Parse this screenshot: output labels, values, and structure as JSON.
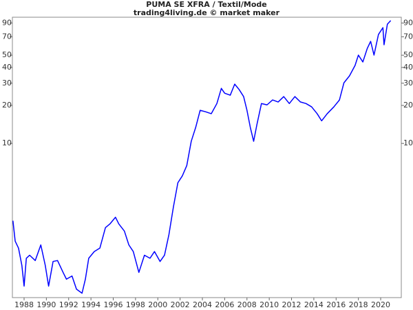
{
  "chart_data": {
    "type": "line",
    "title": "PUMA SE XFRA / Textil/Mode",
    "subtitle": "trading4living.de © market maker",
    "log_y": true,
    "xlim": [
      1986.95,
      2021.85
    ],
    "ylim": [
      0.6,
      100
    ],
    "xticks": [
      1988,
      1990,
      1992,
      1994,
      1996,
      1998,
      2000,
      2002,
      2004,
      2006,
      2008,
      2010,
      2012,
      2014,
      2016,
      2018,
      2020
    ],
    "yticks": [
      10,
      20,
      30,
      40,
      50,
      70,
      90
    ],
    "x": [
      1987.0,
      1987.2,
      1987.5,
      1987.8,
      1988.0,
      1988.2,
      1988.5,
      1989.0,
      1989.5,
      1989.9,
      1990.2,
      1990.6,
      1991.0,
      1991.5,
      1991.8,
      1992.3,
      1992.7,
      1993.2,
      1993.5,
      1993.8,
      1994.3,
      1994.8,
      1995.3,
      1995.7,
      1996.2,
      1996.5,
      1997.0,
      1997.4,
      1997.8,
      1998.3,
      1998.8,
      1999.3,
      1999.7,
      2000.2,
      2000.6,
      2001.0,
      2001.4,
      2001.8,
      2002.2,
      2002.6,
      2003.0,
      2003.4,
      2003.8,
      2004.3,
      2004.8,
      2005.3,
      2005.7,
      2006.0,
      2006.5,
      2006.9,
      2007.3,
      2007.7,
      2008.0,
      2008.3,
      2008.6,
      2008.9,
      2009.3,
      2009.8,
      2010.3,
      2010.8,
      2011.3,
      2011.8,
      2012.3,
      2012.8,
      2013.3,
      2013.8,
      2014.3,
      2014.7,
      2015.2,
      2015.8,
      2016.3,
      2016.7,
      2017.2,
      2017.7,
      2018.0,
      2018.4,
      2018.8,
      2019.1,
      2019.4,
      2019.8,
      2020.2,
      2020.3,
      2020.6,
      2020.9
    ],
    "series": [
      {
        "color": "#0000ff",
        "values": [
          2.44,
          1.68,
          1.48,
          1.08,
          0.74,
          1.23,
          1.3,
          1.18,
          1.57,
          1.08,
          0.74,
          1.16,
          1.18,
          0.95,
          0.84,
          0.89,
          0.7,
          0.65,
          0.84,
          1.23,
          1.39,
          1.48,
          2.15,
          2.3,
          2.6,
          2.3,
          2.02,
          1.57,
          1.39,
          0.95,
          1.3,
          1.23,
          1.39,
          1.16,
          1.3,
          1.9,
          3.14,
          4.88,
          5.53,
          6.68,
          10.4,
          13.4,
          18.3,
          17.8,
          17.2,
          20.7,
          27.3,
          25.0,
          24.1,
          29.5,
          26.7,
          23.5,
          18.3,
          13.4,
          10.4,
          14.2,
          20.7,
          20.2,
          22.1,
          21.3,
          23.5,
          20.7,
          23.5,
          21.3,
          20.7,
          19.5,
          17.2,
          15.1,
          17.2,
          19.5,
          22.1,
          30.2,
          34.3,
          41.5,
          50.1,
          44.2,
          56.7,
          64.4,
          50.1,
          73.0,
          82.7,
          60.5,
          88.0,
          94.0
        ]
      }
    ]
  }
}
